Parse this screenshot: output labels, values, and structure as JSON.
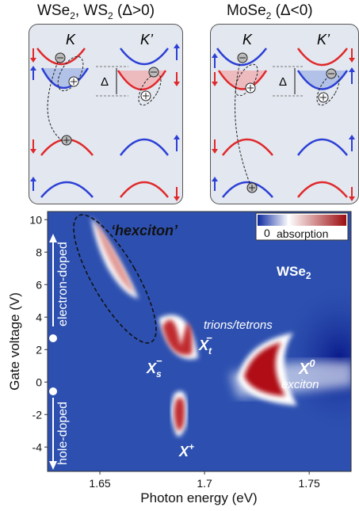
{
  "panels": [
    {
      "title_main": "WSe",
      "title_sub": "2",
      "title_rest": ", WS",
      "title_sub2": "2",
      "title_cond": " (Δ>0)",
      "valley_left": "K",
      "valley_right": "K’",
      "gap": "Δ"
    },
    {
      "title_main": "MoSe",
      "title_sub": "2",
      "title_rest": "",
      "title_sub2": "",
      "title_cond": " (Δ<0)",
      "valley_left": "K",
      "valley_right": "K’",
      "gap": "Δ"
    }
  ],
  "colors": {
    "spin_up": "#2b3fd6",
    "spin_down": "#e0282a",
    "map_bg": "#2d50b0",
    "hot": "#b00d12"
  },
  "chart_data": {
    "type": "heatmap",
    "xlabel": "Photon energy (eV)",
    "ylabel": "Gate voltage (V)",
    "xlim": [
      1.625,
      1.77
    ],
    "ylim": [
      -5.5,
      10.5
    ],
    "xticks": [
      "1.65",
      "1.7",
      "1.75"
    ],
    "yticks": [
      "10",
      "8",
      "6",
      "4",
      "2",
      "0",
      "-2",
      "-4"
    ],
    "material": "WSe",
    "material_sub": "2",
    "colorbar": {
      "min_label": "0",
      "label": "absorption"
    },
    "doping": {
      "top": "electron-doped",
      "bottom": "hole-doped"
    },
    "annotations": {
      "hexciton": "‘hexciton’",
      "trions": "trions/tetrons",
      "xs": "X",
      "xs_sub": "s",
      "xs_sup": "−",
      "xt": "X",
      "xt_sub": "t",
      "xt_sup": "−",
      "x0": "X",
      "x0_sup": "0",
      "exciton": "exciton",
      "xplus": "X",
      "xplus_sup": "+"
    }
  }
}
